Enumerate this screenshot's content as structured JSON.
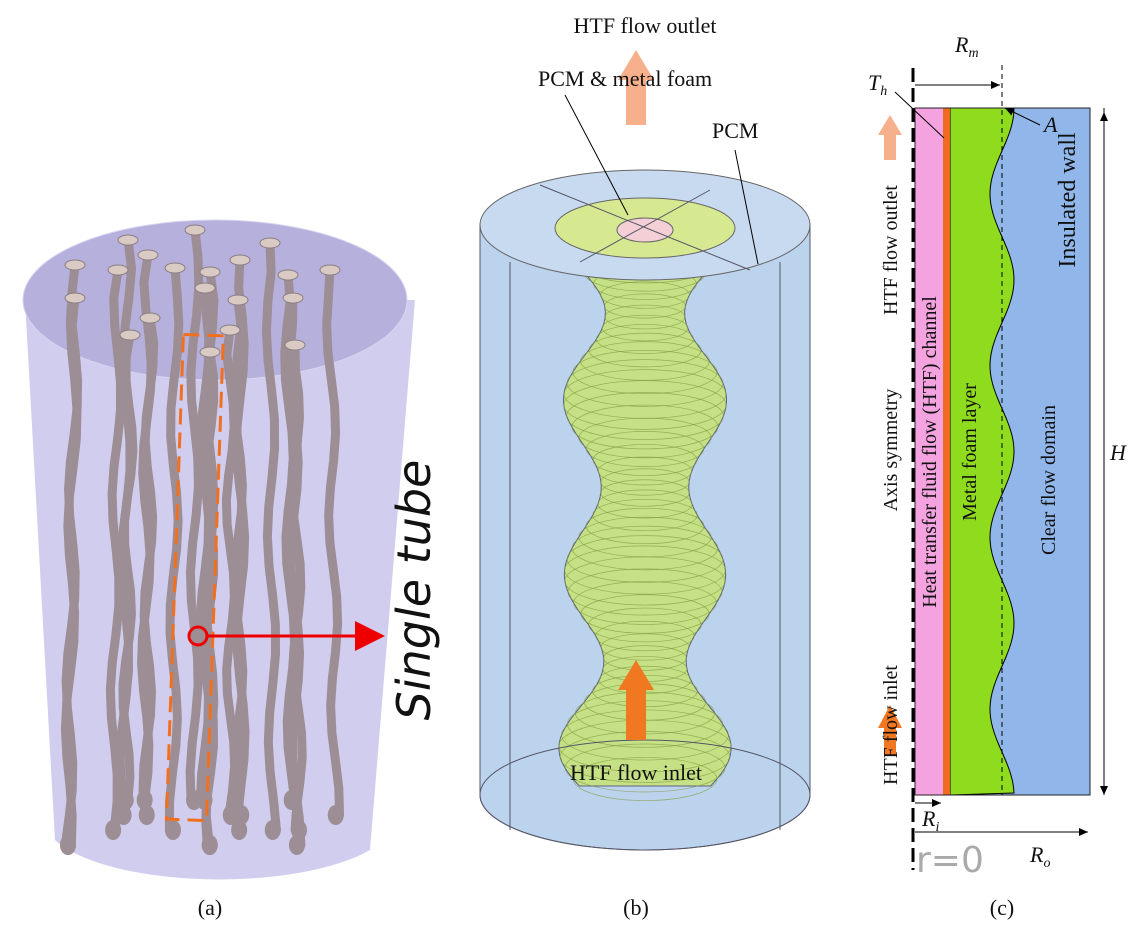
{
  "panel_a": {
    "label": "(a)",
    "annotation": "Single tube"
  },
  "panel_b": {
    "label": "(b)",
    "outlet": "HTF flow outlet",
    "inlet": "HTF flow inlet",
    "callout_foam": "PCM & metal foam",
    "callout_pcm": "PCM"
  },
  "panel_c": {
    "label": "(c)",
    "r_m": {
      "base": "R",
      "sub": "m"
    },
    "t_h": {
      "base": "T",
      "sub": "h"
    },
    "point_a": "A",
    "outlet": "HTF flow outlet",
    "inlet": "HTF flow inlet",
    "wall": "Insulated wall",
    "axis": "Axis symmetry",
    "channel": "Heat transfer fluid flow (HTF) channel",
    "foam": "Metal foam layer",
    "clear": "Clear flow domain",
    "height": "H",
    "r_i": {
      "base": "R",
      "sub": "i"
    },
    "r_o": {
      "base": "R",
      "sub": "o"
    },
    "origin": "r=0"
  }
}
